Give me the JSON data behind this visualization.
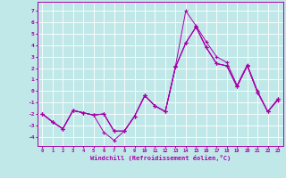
{
  "xlabel": "Windchill (Refroidissement éolien,°C)",
  "xlim": [
    -0.5,
    23.5
  ],
  "ylim": [
    -4.8,
    7.8
  ],
  "yticks": [
    -4,
    -3,
    -2,
    -1,
    0,
    1,
    2,
    3,
    4,
    5,
    6,
    7
  ],
  "xticks": [
    0,
    1,
    2,
    3,
    4,
    5,
    6,
    7,
    8,
    9,
    10,
    11,
    12,
    13,
    14,
    15,
    16,
    17,
    18,
    19,
    20,
    21,
    22,
    23
  ],
  "background_color": "#c0e8e8",
  "grid_color": "#ffffff",
  "line_color": "#aa00aa",
  "s1": [
    -2.0,
    -2.7,
    -3.3,
    -1.7,
    -1.9,
    -2.1,
    -3.6,
    -4.3,
    -3.5,
    -2.2,
    -0.4,
    -1.3,
    -1.8,
    2.2,
    7.0,
    5.7,
    4.3,
    3.0,
    2.5,
    0.5,
    2.3,
    0.0,
    -1.8,
    -0.8
  ],
  "s2": [
    -2.0,
    -2.7,
    -3.3,
    -1.7,
    -1.9,
    -2.1,
    -2.0,
    -3.5,
    -3.5,
    -2.2,
    -0.4,
    -1.3,
    -1.8,
    2.1,
    4.2,
    5.6,
    3.8,
    2.4,
    2.2,
    0.4,
    2.2,
    -0.1,
    -1.8,
    -0.7
  ],
  "s3": [
    -2.0,
    -2.7,
    -3.3,
    -1.7,
    -1.9,
    -2.1,
    -2.0,
    -3.5,
    -3.5,
    -2.2,
    -0.4,
    -1.3,
    -1.8,
    2.1,
    4.2,
    5.6,
    3.8,
    2.4,
    2.2,
    0.4,
    2.2,
    -0.1,
    -1.8,
    -0.7
  ],
  "s4": [
    -2.0,
    -2.7,
    -3.3,
    -1.7,
    -1.9,
    -2.1,
    -2.0,
    -3.5,
    -3.5,
    -2.2,
    -0.4,
    -1.3,
    -1.8,
    2.1,
    4.2,
    5.6,
    3.8,
    2.4,
    2.2,
    0.4,
    2.2,
    -0.1,
    -1.8,
    -0.7
  ]
}
